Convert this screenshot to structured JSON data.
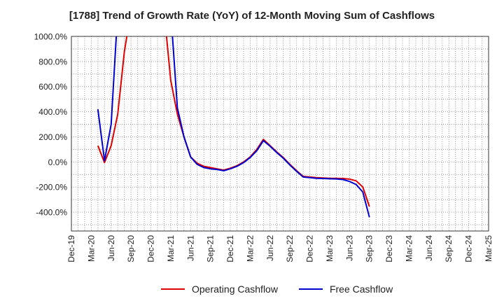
{
  "chart_data": {
    "type": "line",
    "title": "[1788]  Trend of Growth Rate (YoY) of 12-Month Moving Sum of Cashflows",
    "xlabel": "",
    "ylabel": "",
    "ylim": [
      -550,
      1000
    ],
    "y_ticks": [
      {
        "value": 1000,
        "label": "1000.0%"
      },
      {
        "value": 800,
        "label": "800.0%"
      },
      {
        "value": 600,
        "label": "600.0%"
      },
      {
        "value": 400,
        "label": "400.0%"
      },
      {
        "value": 200,
        "label": "200.0%"
      },
      {
        "value": 0,
        "label": "0.0%"
      },
      {
        "value": -200,
        "label": "-200.0%"
      },
      {
        "value": -400,
        "label": "-400.0%"
      }
    ],
    "x_tick_labels": [
      "Dec-19",
      "Mar-20",
      "Jun-20",
      "Sep-20",
      "Dec-20",
      "Mar-21",
      "Jun-21",
      "Sep-21",
      "Dec-21",
      "Mar-22",
      "Jun-22",
      "Sep-22",
      "Dec-22",
      "Mar-23",
      "Jun-23",
      "Sep-23",
      "Dec-23",
      "Mar-24",
      "Jun-24",
      "Sep-24",
      "Dec-24",
      "Mar-25"
    ],
    "grid": true,
    "legend_position": "bottom",
    "series": [
      {
        "name": "Operating Cashflow",
        "color": "#e00000",
        "points": [
          [
            "Apr-20",
            130
          ],
          [
            "May-20",
            -5
          ],
          [
            "Jun-20",
            130
          ],
          [
            "Jul-20",
            380
          ],
          [
            "Aug-20",
            880
          ],
          [
            "Sep-20",
            1200
          ],
          [
            "Feb-21",
            1200
          ],
          [
            "Mar-21",
            650
          ],
          [
            "Apr-21",
            380
          ],
          [
            "May-21",
            200
          ],
          [
            "Jun-21",
            40
          ],
          [
            "Jul-21",
            -10
          ],
          [
            "Aug-21",
            -35
          ],
          [
            "Sep-21",
            -45
          ],
          [
            "Oct-21",
            -55
          ],
          [
            "Nov-21",
            -65
          ],
          [
            "Dec-21",
            -50
          ],
          [
            "Jan-22",
            -30
          ],
          [
            "Feb-22",
            0
          ],
          [
            "Mar-22",
            40
          ],
          [
            "Apr-22",
            100
          ],
          [
            "May-22",
            180
          ],
          [
            "Jun-22",
            130
          ],
          [
            "Jul-22",
            80
          ],
          [
            "Aug-22",
            35
          ],
          [
            "Sep-22",
            -20
          ],
          [
            "Oct-22",
            -70
          ],
          [
            "Nov-22",
            -115
          ],
          [
            "Dec-22",
            -120
          ],
          [
            "Jan-23",
            -125
          ],
          [
            "Feb-23",
            -128
          ],
          [
            "Mar-23",
            -130
          ],
          [
            "Apr-23",
            -130
          ],
          [
            "May-23",
            -132
          ],
          [
            "Jun-23",
            -137
          ],
          [
            "Jul-23",
            -150
          ],
          [
            "Aug-23",
            -200
          ],
          [
            "Sep-23",
            -355
          ]
        ]
      },
      {
        "name": "Free Cashflow",
        "color": "#0000d0",
        "points": [
          [
            "Apr-20",
            420
          ],
          [
            "May-20",
            10
          ],
          [
            "Jun-20",
            300
          ],
          [
            "Jul-20",
            1200
          ],
          [
            "Mar-21",
            1200
          ],
          [
            "Apr-21",
            430
          ],
          [
            "May-21",
            200
          ],
          [
            "Jun-21",
            40
          ],
          [
            "Jul-21",
            -20
          ],
          [
            "Aug-21",
            -45
          ],
          [
            "Sep-21",
            -55
          ],
          [
            "Oct-21",
            -60
          ],
          [
            "Nov-21",
            -70
          ],
          [
            "Dec-21",
            -55
          ],
          [
            "Jan-22",
            -35
          ],
          [
            "Feb-22",
            -5
          ],
          [
            "Mar-22",
            35
          ],
          [
            "Apr-22",
            90
          ],
          [
            "May-22",
            170
          ],
          [
            "Jun-22",
            125
          ],
          [
            "Jul-22",
            75
          ],
          [
            "Aug-22",
            30
          ],
          [
            "Sep-22",
            -25
          ],
          [
            "Oct-22",
            -75
          ],
          [
            "Nov-22",
            -120
          ],
          [
            "Dec-22",
            -125
          ],
          [
            "Jan-23",
            -130
          ],
          [
            "Feb-23",
            -132
          ],
          [
            "Mar-23",
            -134
          ],
          [
            "Apr-23",
            -135
          ],
          [
            "May-23",
            -140
          ],
          [
            "Jun-23",
            -155
          ],
          [
            "Jul-23",
            -180
          ],
          [
            "Aug-23",
            -240
          ],
          [
            "Sep-23",
            -440
          ]
        ]
      }
    ]
  }
}
